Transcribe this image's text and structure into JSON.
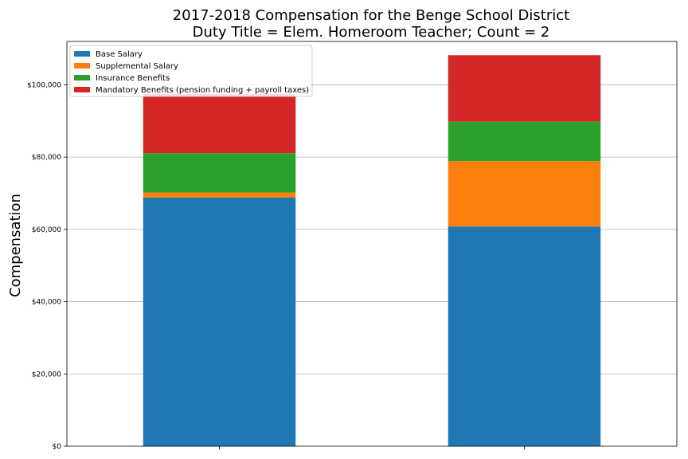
{
  "chart_data": {
    "type": "bar",
    "stacked": true,
    "title": "2017-2018 Compensation for the Benge School District",
    "subtitle": "Duty Title = Elem. Homeroom Teacher; Count = 2",
    "xlabel": "",
    "ylabel": "Compensation",
    "categories": [
      "",
      ""
    ],
    "ylim": [
      0,
      112000
    ],
    "yticks": [
      0,
      20000,
      40000,
      60000,
      80000,
      100000
    ],
    "ytick_labels": [
      "$0",
      "$20,000",
      "$40,000",
      "$60,000",
      "$80,000",
      "$100,000"
    ],
    "grid": "horizontal",
    "legend_position": "top-left",
    "series": [
      {
        "name": "Base Salary",
        "color": "#1f77b4",
        "values": [
          68800,
          60800
        ]
      },
      {
        "name": "Supplemental Salary",
        "color": "#ff7f0e",
        "values": [
          1400,
          18100
        ]
      },
      {
        "name": "Insurance Benefits",
        "color": "#2ca02c",
        "values": [
          10900,
          10900
        ]
      },
      {
        "name": "Mandatory Benefits (pension funding + payroll taxes)",
        "color": "#d62728",
        "values": [
          16400,
          18400
        ]
      }
    ]
  }
}
